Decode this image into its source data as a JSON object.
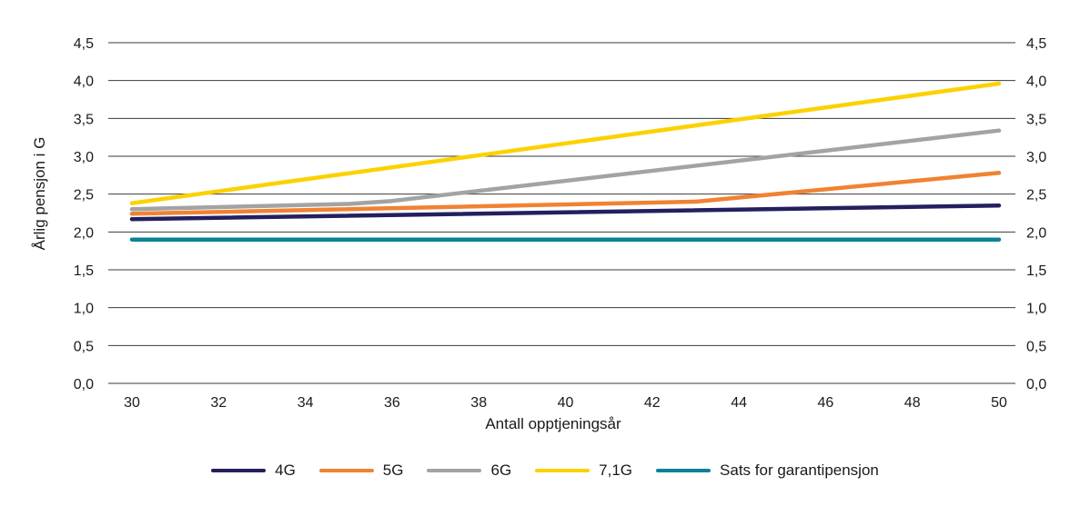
{
  "chart_data": {
    "type": "line",
    "title": "",
    "xlabel": "Antall opptjeningsår",
    "ylabel": "Årlig pensjon i G",
    "xlim": [
      30,
      50
    ],
    "ylim": [
      0,
      4.5
    ],
    "x_ticks": [
      30,
      32,
      34,
      36,
      38,
      40,
      42,
      44,
      46,
      48,
      50
    ],
    "y_ticks": [
      0,
      0.5,
      1.0,
      1.5,
      2.0,
      2.5,
      3.0,
      3.5,
      4.0,
      4.5
    ],
    "y_tick_labels": [
      "0,0",
      "0,5",
      "1,0",
      "1,5",
      "2,0",
      "2,5",
      "3,0",
      "3,5",
      "4,0",
      "4,5"
    ],
    "grid": true,
    "legend_position": "bottom",
    "series": [
      {
        "name": "4G",
        "color": "#22205f",
        "x": [
          30,
          50
        ],
        "values": [
          2.17,
          2.35
        ]
      },
      {
        "name": "5G",
        "color": "#f08232",
        "x": [
          30,
          43,
          50
        ],
        "values": [
          2.24,
          2.4,
          2.78
        ]
      },
      {
        "name": "6G",
        "color": "#a3a3a3",
        "x": [
          30,
          35,
          36,
          50
        ],
        "values": [
          2.3,
          2.37,
          2.41,
          3.34
        ]
      },
      {
        "name": "7,1G",
        "color": "#fdd100",
        "x": [
          30,
          50
        ],
        "values": [
          2.38,
          3.96
        ]
      },
      {
        "name": "Sats for garantipensjon",
        "color": "#0a8296",
        "x": [
          30,
          50
        ],
        "values": [
          1.9,
          1.9
        ]
      }
    ]
  }
}
